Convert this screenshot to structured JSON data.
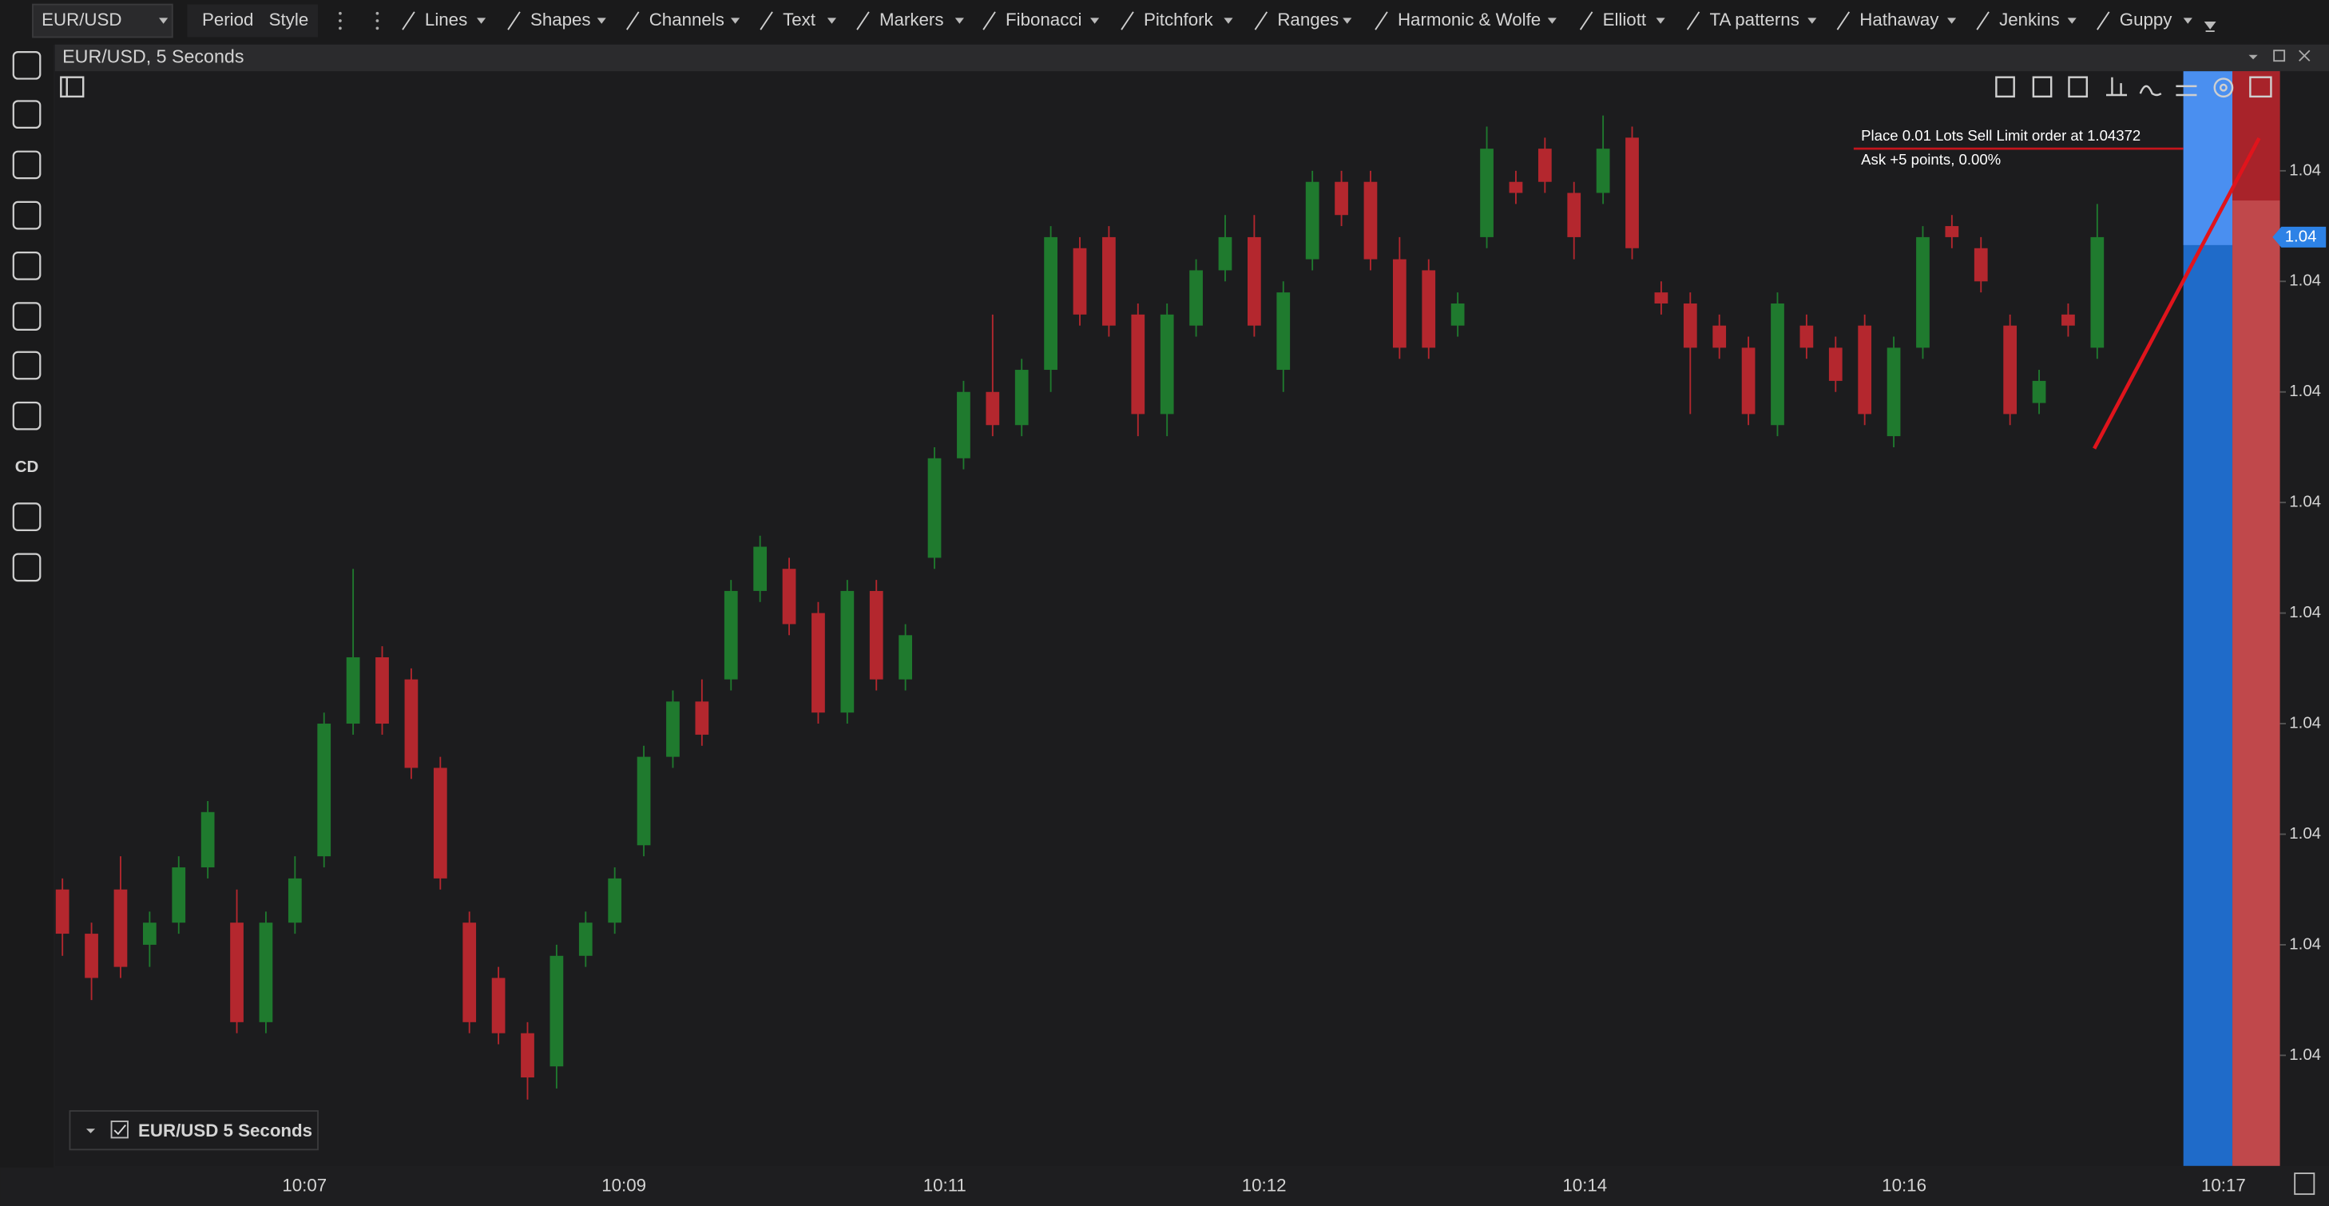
{
  "toolbar": {
    "symbol": "EUR/USD",
    "buttons": [
      "Period",
      "Style"
    ],
    "tools": [
      "Lines",
      "Shapes",
      "Channels",
      "Text",
      "Markers",
      "Fibonacci",
      "Pitchfork",
      "Ranges",
      "Harmonic & Wolfe",
      "Elliott",
      "TA patterns",
      "Hathaway",
      "Jenkins",
      "Guppy"
    ]
  },
  "left_tools": {
    "cd": "CD"
  },
  "chart": {
    "title": "EUR/USD, 5 Seconds",
    "legend": "EUR/USD 5 Seconds",
    "order": {
      "text": "Place 0.01 Lots Sell Limit order at 1.04372",
      "price": 1.04372,
      "ask": "Ask +5 points, 0.00%"
    }
  },
  "chart_data": {
    "type": "candlestick",
    "open": [
      1.04305,
      1.04301,
      1.04305,
      1.043,
      1.04302,
      1.04307,
      1.04302,
      1.04293,
      1.04302,
      1.04308,
      1.0432,
      1.04326,
      1.04324,
      1.04316,
      1.04302,
      1.04297,
      1.04292,
      1.04289,
      1.04299,
      1.04302,
      1.04309,
      1.04317,
      1.04322,
      1.04324,
      1.04332,
      1.04334,
      1.0433,
      1.04321,
      1.04332,
      1.04324,
      1.04335,
      1.04344,
      1.0435,
      1.04347,
      1.04352,
      1.04363,
      1.04364,
      1.04357,
      1.04348,
      1.04356,
      1.04361,
      1.04364,
      1.04352,
      1.04362,
      1.04369,
      1.04369,
      1.04362,
      1.04361,
      1.04356,
      1.04364,
      1.04369,
      1.04372,
      1.04368,
      1.04368,
      1.04373,
      1.04359,
      1.04358,
      1.04356,
      1.04354,
      1.04347,
      1.04356,
      1.04354,
      1.04356,
      1.04346,
      1.04354,
      1.04365,
      1.04363,
      1.04356,
      1.04349,
      1.04357,
      1.04354
    ],
    "high": [
      1.04306,
      1.04302,
      1.04308,
      1.04303,
      1.04308,
      1.04313,
      1.04305,
      1.04303,
      1.04308,
      1.04321,
      1.04334,
      1.04327,
      1.04325,
      1.04317,
      1.04303,
      1.04298,
      1.04293,
      1.043,
      1.04303,
      1.04307,
      1.04318,
      1.04323,
      1.04324,
      1.04333,
      1.04337,
      1.04335,
      1.04331,
      1.04333,
      1.04333,
      1.04329,
      1.04345,
      1.04351,
      1.04357,
      1.04353,
      1.04365,
      1.04364,
      1.04365,
      1.04358,
      1.04358,
      1.04362,
      1.04366,
      1.04366,
      1.0436,
      1.0437,
      1.0437,
      1.0437,
      1.04364,
      1.04362,
      1.04359,
      1.04374,
      1.0437,
      1.04373,
      1.04369,
      1.04375,
      1.04374,
      1.0436,
      1.04359,
      1.04357,
      1.04355,
      1.04359,
      1.04357,
      1.04355,
      1.04357,
      1.04355,
      1.04365,
      1.04366,
      1.04364,
      1.04357,
      1.04352,
      1.04358,
      1.04367
    ],
    "low": [
      1.04299,
      1.04295,
      1.04297,
      1.04298,
      1.04301,
      1.04306,
      1.04292,
      1.04292,
      1.04301,
      1.04307,
      1.04319,
      1.04319,
      1.04315,
      1.04305,
      1.04292,
      1.04291,
      1.04286,
      1.04287,
      1.04298,
      1.04301,
      1.04308,
      1.04316,
      1.04318,
      1.04323,
      1.04331,
      1.04328,
      1.0432,
      1.0432,
      1.04323,
      1.04323,
      1.04334,
      1.04343,
      1.04346,
      1.04346,
      1.0435,
      1.04356,
      1.04355,
      1.04346,
      1.04346,
      1.04355,
      1.0436,
      1.04355,
      1.0435,
      1.04361,
      1.04365,
      1.04361,
      1.04353,
      1.04353,
      1.04355,
      1.04363,
      1.04367,
      1.04368,
      1.04362,
      1.04367,
      1.04362,
      1.04357,
      1.04348,
      1.04353,
      1.04347,
      1.04346,
      1.04353,
      1.0435,
      1.04347,
      1.04345,
      1.04353,
      1.04363,
      1.04359,
      1.04347,
      1.04348,
      1.04355,
      1.04353
    ],
    "close": [
      1.04301,
      1.04297,
      1.04298,
      1.04302,
      1.04307,
      1.04312,
      1.04293,
      1.04302,
      1.04306,
      1.0432,
      1.04326,
      1.0432,
      1.04316,
      1.04306,
      1.04293,
      1.04292,
      1.04288,
      1.04299,
      1.04302,
      1.04306,
      1.04317,
      1.04322,
      1.04319,
      1.04332,
      1.04336,
      1.04329,
      1.04321,
      1.04332,
      1.04324,
      1.04328,
      1.04344,
      1.0435,
      1.04347,
      1.04352,
      1.04364,
      1.04357,
      1.04356,
      1.04348,
      1.04357,
      1.04361,
      1.04364,
      1.04356,
      1.04359,
      1.04369,
      1.04366,
      1.04362,
      1.04354,
      1.04354,
      1.04358,
      1.04372,
      1.04368,
      1.04369,
      1.04364,
      1.04372,
      1.04363,
      1.04358,
      1.04354,
      1.04354,
      1.04348,
      1.04358,
      1.04354,
      1.04351,
      1.04348,
      1.04354,
      1.04364,
      1.04364,
      1.0436,
      1.04348,
      1.04351,
      1.04356,
      1.04364
    ],
    "up_color": "#1f7a2e",
    "down_color": "#b4272e",
    "ylim": [
      1.0428,
      1.04379
    ],
    "yticks": [
      {
        "value": 1.0437,
        "label": "1.04"
      },
      {
        "value": 1.0436,
        "label": "1.04"
      },
      {
        "value": 1.0435,
        "label": "1.04"
      },
      {
        "value": 1.0434,
        "label": "1.04"
      },
      {
        "value": 1.0433,
        "label": "1.04"
      },
      {
        "value": 1.0432,
        "label": "1.04"
      },
      {
        "value": 1.0431,
        "label": "1.04"
      },
      {
        "value": 1.043,
        "label": "1.04"
      },
      {
        "value": 1.0429,
        "label": "1.04"
      }
    ],
    "xticks": [
      "10:07",
      "10:09",
      "10:11",
      "10:12",
      "10:14",
      "10:16",
      "10:17"
    ],
    "last_price": {
      "value": 1.04364,
      "label": "1.04"
    }
  }
}
